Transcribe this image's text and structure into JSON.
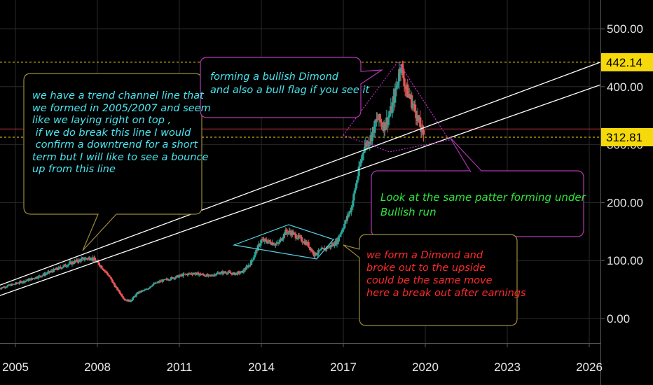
{
  "colors": {
    "background": "#000000",
    "grid": "#2a2a2a",
    "up": "#26a69a",
    "down": "#ef5350",
    "trendline": "#ffffff",
    "guide_yellow": "#f5d90a",
    "guide_red": "#b83040",
    "diamond_cyan": "#56d5e5",
    "diamond_magenta": "#c02cc6",
    "callout_cyan_text": "#49e5f0",
    "callout_green_text": "#2ee63a",
    "callout_red_text": "#ff2a2a",
    "callout_border_yellow": "#9a8a3a",
    "callout_border_magenta": "#b038b0"
  },
  "chart_data": {
    "type": "candlestick",
    "x_ticks": [
      "2005",
      "2008",
      "2011",
      "2014",
      "2017",
      "2020",
      "2023",
      "2026"
    ],
    "y_ticks": [
      "500.00",
      "400.00",
      "300.00",
      "200.00",
      "100.00",
      "0.00"
    ],
    "ylim": [
      -20,
      520
    ],
    "xlim": [
      2004.4,
      2026.6
    ],
    "price_tags": [
      {
        "label": "442.14",
        "value": 442.14
      },
      {
        "label": "312.81",
        "value": 312.81
      }
    ],
    "red_guide_value": 327,
    "series_close": [
      [
        2004.4,
        52
      ],
      [
        2005.0,
        60
      ],
      [
        2005.5,
        67
      ],
      [
        2006.0,
        75
      ],
      [
        2006.5,
        85
      ],
      [
        2007.0,
        95
      ],
      [
        2007.5,
        103
      ],
      [
        2007.8,
        105
      ],
      [
        2008.1,
        92
      ],
      [
        2008.4,
        75
      ],
      [
        2008.7,
        52
      ],
      [
        2009.0,
        33
      ],
      [
        2009.2,
        30
      ],
      [
        2009.5,
        45
      ],
      [
        2009.8,
        50
      ],
      [
        2010.0,
        58
      ],
      [
        2010.3,
        64
      ],
      [
        2010.6,
        68
      ],
      [
        2010.9,
        72
      ],
      [
        2011.2,
        76
      ],
      [
        2011.5,
        78
      ],
      [
        2011.8,
        76
      ],
      [
        2012.1,
        73
      ],
      [
        2012.4,
        78
      ],
      [
        2012.7,
        80
      ],
      [
        2013.0,
        77
      ],
      [
        2013.3,
        80
      ],
      [
        2013.6,
        95
      ],
      [
        2013.85,
        120
      ],
      [
        2014.0,
        135
      ],
      [
        2014.3,
        132
      ],
      [
        2014.6,
        128
      ],
      [
        2014.9,
        150
      ],
      [
        2015.1,
        148
      ],
      [
        2015.4,
        138
      ],
      [
        2015.7,
        128
      ],
      [
        2015.95,
        110
      ],
      [
        2016.2,
        118
      ],
      [
        2016.5,
        124
      ],
      [
        2016.75,
        132
      ],
      [
        2017.0,
        158
      ],
      [
        2017.3,
        192
      ],
      [
        2017.55,
        250
      ],
      [
        2017.75,
        295
      ],
      [
        2018.0,
        312
      ],
      [
        2018.25,
        345
      ],
      [
        2018.5,
        332
      ],
      [
        2018.75,
        358
      ],
      [
        2018.95,
        400
      ],
      [
        2019.1,
        440
      ],
      [
        2019.3,
        395
      ],
      [
        2019.5,
        375
      ],
      [
        2019.7,
        350
      ],
      [
        2019.9,
        318
      ]
    ],
    "trend_lines": [
      {
        "x1": 2004.4,
        "y1": 57,
        "x2": 2026.4,
        "y2": 442
      },
      {
        "x1": 2004.4,
        "y1": 39,
        "x2": 2026.4,
        "y2": 403
      }
    ],
    "annotations": [
      {
        "text": "we have a trend channel line that\nwe formed in 2005/2007 and seem\nlike we laying right on top ,\n if we do break this line I would\n confirm a downtrend for a short\nterm but I will like to see a bounce\nup from this line"
      },
      {
        "text": "forming a bullish Dimond\nand also a bull flag if you see it"
      },
      {
        "text": "Look at the same patter forming under\nBullish run"
      },
      {
        "text": "we form a Dimond and\nbroke out to the upside\ncould be the same move\nhere a break out after earnings"
      }
    ]
  }
}
